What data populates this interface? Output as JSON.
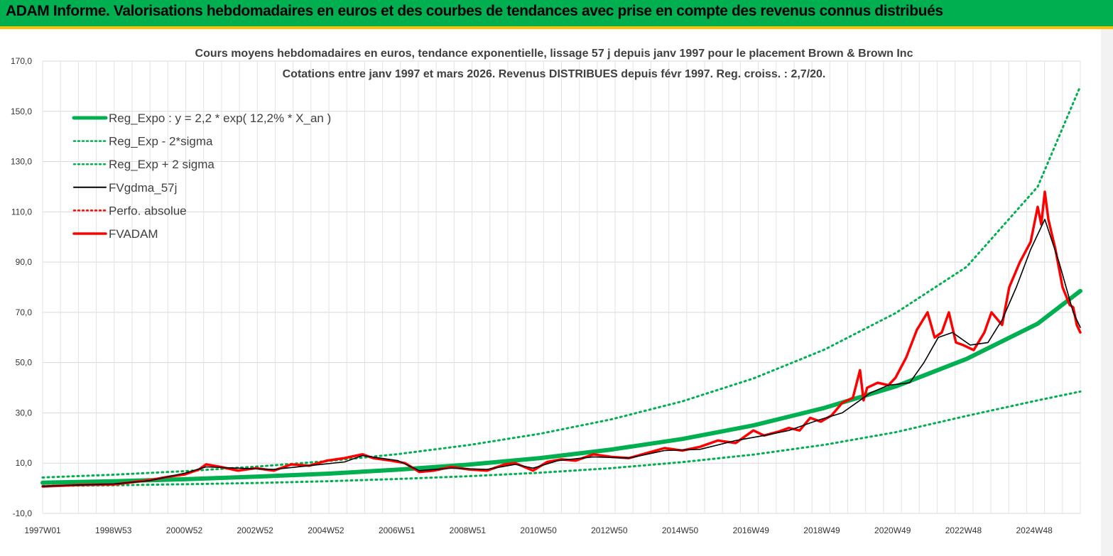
{
  "header": {
    "title": "ADAM Informe. Valorisations hebdomadaires en euros et des courbes de tendances avec prise en compte des revenus connus distribués",
    "background": "#00b050",
    "underline": "#ffc000"
  },
  "chart_data": {
    "type": "line",
    "title_line1": "Cours moyens hebdomadaires en euros, tendance exponentielle, lissage 57 j depuis janv 1997 pour le placement Brown & Brown Inc",
    "title_line2": "Cotations entre janv 1997 et mars 2026. Revenus DISTRIBUES depuis févr 1997. Reg. croiss. : 2,7/20.",
    "ylim": [
      -10,
      170
    ],
    "xlim": [
      1997.0,
      2026.2
    ],
    "y_ticks": [
      "-10,0",
      "10,0",
      "30,0",
      "50,0",
      "70,0",
      "90,0",
      "110,0",
      "130,0",
      "150,0",
      "170,0"
    ],
    "x_ticks": [
      "1997W01",
      "1998W53",
      "2000W52",
      "2002W52",
      "2004W52",
      "2006W51",
      "2008W51",
      "2010W50",
      "2012W50",
      "2014W50",
      "2016W49",
      "2018W49",
      "2020W49",
      "2022W48",
      "2024W48"
    ],
    "grid": true,
    "legend_position": "top-left",
    "legend": [
      {
        "label": "Reg_Expo : y = 2,2 * exp( 12,2% *  X_an )",
        "color": "#00b050",
        "style": "solid-thick"
      },
      {
        "label": "Reg_Exp - 2*sigma",
        "color": "#00b050",
        "style": "dotted"
      },
      {
        "label": "Reg_Exp + 2 sigma",
        "color": "#00b050",
        "style": "dotted"
      },
      {
        "label": "FVgdma_57j",
        "color": "#000000",
        "style": "solid-thin"
      },
      {
        "label": "Perfo. absolue",
        "color": "#ff0000",
        "style": "dotted"
      },
      {
        "label": "FVADAM",
        "color": "#ff0000",
        "style": "solid"
      }
    ],
    "series": [
      {
        "name": "Reg_Expo : y = 2,2 * exp( 12,2% *  X_an )",
        "color": "#00b050",
        "x": [
          1997.0,
          1999.0,
          2001.0,
          2003.0,
          2005.0,
          2007.0,
          2009.0,
          2011.0,
          2013.0,
          2015.0,
          2017.0,
          2019.0,
          2021.0,
          2023.0,
          2025.0,
          2026.2
        ],
        "values": [
          2.2,
          2.8,
          3.6,
          4.6,
          5.8,
          7.4,
          9.4,
          12.0,
          15.4,
          19.6,
          25.0,
          32.0,
          40.5,
          51.5,
          65.5,
          78.5
        ]
      },
      {
        "name": "Reg_Exp - 2*sigma",
        "color": "#00b050",
        "x": [
          1997.0,
          1999.0,
          2001.0,
          2003.0,
          2005.0,
          2007.0,
          2009.0,
          2011.0,
          2013.0,
          2015.0,
          2017.0,
          2019.0,
          2021.0,
          2023.0,
          2025.0,
          2026.2
        ],
        "values": [
          0.9,
          1.2,
          1.6,
          2.1,
          2.8,
          3.7,
          4.8,
          6.2,
          8.0,
          10.4,
          13.4,
          17.3,
          22.3,
          28.8,
          35.0,
          38.5
        ]
      },
      {
        "name": "Reg_Exp + 2 sigma",
        "color": "#00b050",
        "x": [
          1997.0,
          1999.0,
          2001.0,
          2003.0,
          2005.0,
          2007.0,
          2009.0,
          2011.0,
          2013.0,
          2015.0,
          2017.0,
          2019.0,
          2021.0,
          2023.0,
          2025.0,
          2026.2
        ],
        "values": [
          4.3,
          5.4,
          6.8,
          8.6,
          10.8,
          13.6,
          17.2,
          21.7,
          27.4,
          34.6,
          43.7,
          55.2,
          69.7,
          88.1,
          120.0,
          160.0
        ]
      },
      {
        "name": "FVgdma_57j",
        "color": "#000000",
        "x": [
          1997.0,
          1998.0,
          1999.0,
          2000.0,
          2001.0,
          2001.6,
          2002.5,
          2003.5,
          2004.5,
          2005.5,
          2006.0,
          2007.0,
          2007.6,
          2008.5,
          2009.5,
          2010.3,
          2010.8,
          2011.5,
          2012.5,
          2013.5,
          2014.5,
          2015.5,
          2016.5,
          2017.3,
          2018.0,
          2018.8,
          2019.5,
          2019.9,
          2020.3,
          2020.8,
          2021.4,
          2021.8,
          2022.2,
          2022.6,
          2023.1,
          2023.6,
          2024.0,
          2024.4,
          2024.8,
          2025.2,
          2025.6,
          2026.0,
          2026.2
        ],
        "values": [
          0.8,
          1.3,
          1.7,
          3.0,
          6.0,
          8.5,
          8.0,
          7.5,
          9.0,
          10.5,
          13.0,
          11.0,
          7.0,
          8.0,
          7.5,
          9.5,
          8.0,
          11.0,
          12.5,
          12.0,
          15.0,
          15.5,
          19.0,
          21.0,
          23.0,
          27.0,
          30.0,
          34.0,
          38.0,
          41.0,
          42.0,
          50.0,
          60.0,
          62.0,
          57.0,
          58.0,
          67.0,
          80.0,
          95.0,
          107.0,
          90.0,
          70.0,
          64.0
        ]
      },
      {
        "name": "FVADAM",
        "color": "#ff0000",
        "x": [
          1997.0,
          1998.0,
          1999.0,
          2000.0,
          2000.5,
          2001.0,
          2001.4,
          2001.6,
          2002.0,
          2002.5,
          2003.0,
          2003.5,
          2004.0,
          2004.5,
          2005.0,
          2005.5,
          2006.0,
          2006.3,
          2006.8,
          2007.2,
          2007.6,
          2008.0,
          2008.5,
          2009.0,
          2009.5,
          2010.0,
          2010.3,
          2010.8,
          2011.2,
          2011.6,
          2012.0,
          2012.5,
          2013.0,
          2013.5,
          2014.0,
          2014.5,
          2015.0,
          2015.5,
          2016.0,
          2016.5,
          2017.0,
          2017.3,
          2017.7,
          2018.0,
          2018.3,
          2018.6,
          2018.9,
          2019.2,
          2019.5,
          2019.8,
          2020.0,
          2020.1,
          2020.2,
          2020.5,
          2020.8,
          2021.0,
          2021.3,
          2021.6,
          2021.9,
          2022.1,
          2022.3,
          2022.5,
          2022.7,
          2022.9,
          2023.2,
          2023.5,
          2023.7,
          2024.0,
          2024.2,
          2024.5,
          2024.8,
          2025.0,
          2025.1,
          2025.2,
          2025.3,
          2025.5,
          2025.7,
          2025.9,
          2026.0,
          2026.1,
          2026.2
        ],
        "values": [
          0.7,
          1.3,
          1.5,
          3.2,
          4.5,
          5.5,
          7.5,
          9.5,
          8.5,
          7.0,
          8.0,
          7.0,
          9.5,
          9.0,
          11.0,
          12.0,
          13.5,
          12.0,
          11.0,
          10.0,
          6.5,
          7.0,
          8.5,
          7.5,
          7.0,
          9.5,
          10.0,
          7.0,
          10.5,
          11.5,
          11.0,
          13.5,
          12.5,
          12.0,
          14.0,
          16.0,
          15.0,
          16.5,
          19.0,
          18.0,
          23.0,
          21.0,
          22.5,
          24.0,
          23.0,
          28.0,
          26.5,
          29.0,
          34.0,
          36.0,
          47.0,
          35.0,
          40.0,
          42.0,
          41.0,
          44.0,
          52.0,
          63.0,
          70.0,
          60.0,
          62.0,
          70.0,
          58.0,
          57.0,
          55.0,
          62.0,
          70.0,
          65.0,
          80.0,
          90.0,
          98.0,
          112.0,
          105.0,
          118.0,
          107.0,
          95.0,
          80.0,
          73.0,
          72.0,
          65.0,
          62.0
        ]
      }
    ]
  }
}
